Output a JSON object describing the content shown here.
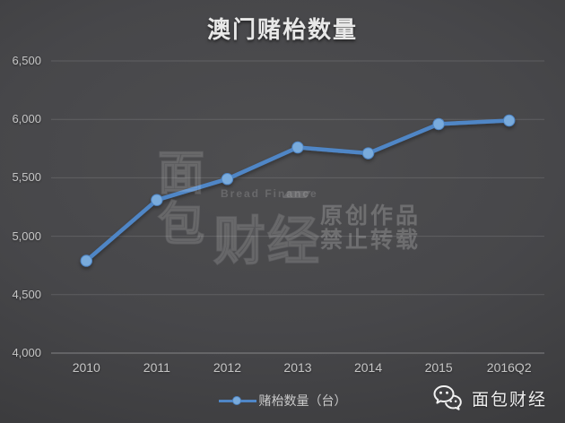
{
  "chart_data": {
    "type": "line",
    "title": "澳门赌枱数量",
    "categories": [
      "2010",
      "2011",
      "2012",
      "2013",
      "2014",
      "2015",
      "2016Q2"
    ],
    "series": [
      {
        "name": "赌枱数量（台）",
        "values": [
          4790,
          5310,
          5490,
          5760,
          5710,
          5960,
          5990
        ]
      }
    ],
    "ylim": [
      4000,
      6500
    ],
    "ytick_step": 500,
    "yticks": [
      "6,500",
      "6,000",
      "5,500",
      "5,000",
      "4,500",
      "4,000"
    ],
    "grid": true,
    "legend_position": "bottom"
  },
  "watermark": {
    "logo_top": "面",
    "logo_bottom": "包",
    "logo_right": "财经",
    "brand_en": "Bread Finance",
    "notice_line1": "原创作品",
    "notice_line2": "禁止转载"
  },
  "footer": {
    "wechat_icon": "wechat-icon",
    "account_name": "面包财经"
  },
  "colors": {
    "background_center": "#4e4e50",
    "background_edge": "#3a3a3c",
    "title": "#e8e8e8",
    "tick_label": "#c6c6c6",
    "gridline": "rgba(255,255,255,0.13)",
    "axis_line": "rgba(255,255,255,0.35)",
    "line_color": "#4f86c6",
    "marker_color": "#79abdc"
  }
}
